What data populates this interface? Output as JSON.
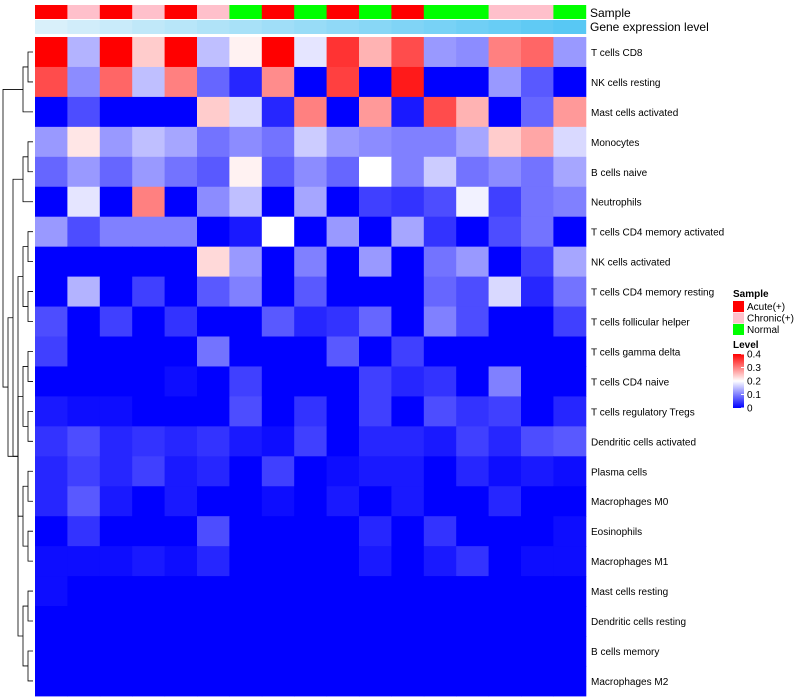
{
  "chart_data": {
    "type": "heatmap",
    "annotation_labels": {
      "sample": "Sample",
      "expression": "Gene expression level"
    },
    "sample_groups": [
      "Acute",
      "Chronic",
      "Acute",
      "Chronic",
      "Acute",
      "Chronic",
      "Normal",
      "Acute",
      "Normal",
      "Acute",
      "Normal",
      "Acute",
      "Normal",
      "Normal",
      "Chronic",
      "Chronic",
      "Normal"
    ],
    "group_colors": {
      "Acute": "#ff0000",
      "Chronic": "#ffc0cb",
      "Normal": "#00ff00"
    },
    "expression_levels": [
      0.05,
      0.08,
      0.11,
      0.14,
      0.17,
      0.2,
      0.23,
      0.26,
      0.29,
      0.32,
      0.35,
      0.38,
      0.41,
      0.44,
      0.47,
      0.5,
      0.53
    ],
    "expression_scale": {
      "low": "#e6f4fb",
      "high": "#58c8f4"
    },
    "rows": [
      "T cells CD8",
      "NK cells resting",
      "Mast cells activated",
      "Monocytes",
      "B cells naive",
      "Neutrophils",
      "T cells CD4 memory activated",
      "NK cells activated",
      "T cells CD4 memory resting",
      "T cells follicular helper",
      "T cells gamma delta",
      "T cells CD4 naive",
      "T cells regulatory  Tregs",
      "Dendritic cells activated",
      "Plasma cells",
      "Macrophages M0",
      "Eosinophils",
      "Macrophages M1",
      "Mast cells resting",
      "Dendritic cells resting",
      "B cells memory",
      "Macrophages M2"
    ],
    "values": [
      [
        0.4,
        0.14,
        0.4,
        0.24,
        0.4,
        0.15,
        0.21,
        0.4,
        0.18,
        0.36,
        0.26,
        0.34,
        0.12,
        0.11,
        0.3,
        0.32,
        0.12
      ],
      [
        0.34,
        0.11,
        0.32,
        0.15,
        0.3,
        0.08,
        0.03,
        0.29,
        0.0,
        0.35,
        0.0,
        0.38,
        0.0,
        0.0,
        0.12,
        0.07,
        0.0
      ],
      [
        0.0,
        0.06,
        0.0,
        0.0,
        0.0,
        0.24,
        0.17,
        0.03,
        0.3,
        0.0,
        0.28,
        0.02,
        0.34,
        0.26,
        0.0,
        0.08,
        0.28
      ],
      [
        0.12,
        0.22,
        0.12,
        0.15,
        0.13,
        0.09,
        0.11,
        0.09,
        0.16,
        0.12,
        0.11,
        0.1,
        0.1,
        0.13,
        0.24,
        0.27,
        0.17
      ],
      [
        0.08,
        0.12,
        0.08,
        0.12,
        0.09,
        0.07,
        0.21,
        0.07,
        0.11,
        0.08,
        0.2,
        0.1,
        0.16,
        0.09,
        0.11,
        0.09,
        0.13
      ],
      [
        0.0,
        0.18,
        0.0,
        0.3,
        0.0,
        0.11,
        0.15,
        0.0,
        0.13,
        0.0,
        0.05,
        0.04,
        0.06,
        0.19,
        0.05,
        0.09,
        0.1
      ],
      [
        0.12,
        0.06,
        0.1,
        0.1,
        0.1,
        0.0,
        0.02,
        0.2,
        0.0,
        0.12,
        0.0,
        0.13,
        0.04,
        0.0,
        0.06,
        0.09,
        0.0
      ],
      [
        0.0,
        0.0,
        0.0,
        0.0,
        0.0,
        0.23,
        0.12,
        0.0,
        0.1,
        0.0,
        0.12,
        0.0,
        0.09,
        0.12,
        0.0,
        0.05,
        0.13
      ],
      [
        0.0,
        0.14,
        0.0,
        0.05,
        0.0,
        0.07,
        0.1,
        0.0,
        0.07,
        0.0,
        0.0,
        0.0,
        0.08,
        0.06,
        0.17,
        0.03,
        0.09
      ],
      [
        0.06,
        0.0,
        0.05,
        0.0,
        0.04,
        0.0,
        0.0,
        0.07,
        0.03,
        0.04,
        0.08,
        0.0,
        0.1,
        0.06,
        0.0,
        0.0,
        0.05
      ],
      [
        0.05,
        0.0,
        0.0,
        0.0,
        0.0,
        0.09,
        0.0,
        0.0,
        0.0,
        0.07,
        0.0,
        0.05,
        0.0,
        0.0,
        0.0,
        0.0,
        0.0
      ],
      [
        0.0,
        0.0,
        0.0,
        0.0,
        0.01,
        0.0,
        0.05,
        0.0,
        0.0,
        0.0,
        0.05,
        0.03,
        0.04,
        0.0,
        0.1,
        0.0,
        0.0
      ],
      [
        0.02,
        0.01,
        0.01,
        0.0,
        0.0,
        0.0,
        0.06,
        0.0,
        0.04,
        0.0,
        0.05,
        0.0,
        0.06,
        0.04,
        0.05,
        0.0,
        0.03
      ],
      [
        0.04,
        0.06,
        0.03,
        0.04,
        0.03,
        0.04,
        0.02,
        0.01,
        0.05,
        0.0,
        0.03,
        0.03,
        0.02,
        0.05,
        0.03,
        0.06,
        0.07
      ],
      [
        0.03,
        0.05,
        0.03,
        0.05,
        0.02,
        0.03,
        0.0,
        0.05,
        0.0,
        0.01,
        0.02,
        0.02,
        0.0,
        0.03,
        0.01,
        0.02,
        0.01
      ],
      [
        0.03,
        0.07,
        0.02,
        0.0,
        0.02,
        0.0,
        0.0,
        0.01,
        0.0,
        0.02,
        0.0,
        0.02,
        0.0,
        0.0,
        0.03,
        0.0,
        0.0
      ],
      [
        0.0,
        0.04,
        0.0,
        0.0,
        0.0,
        0.06,
        0.0,
        0.0,
        0.0,
        0.0,
        0.03,
        0.0,
        0.04,
        0.0,
        0.0,
        0.0,
        0.01
      ],
      [
        0.01,
        0.01,
        0.01,
        0.02,
        0.01,
        0.03,
        0.0,
        0.0,
        0.0,
        0.0,
        0.02,
        0.0,
        0.02,
        0.04,
        0.0,
        0.01,
        0.01
      ],
      [
        0.01,
        0.0,
        0.0,
        0.0,
        0.0,
        0.0,
        0.0,
        0.0,
        0.0,
        0.0,
        0.0,
        0.0,
        0.0,
        0.0,
        0.0,
        0.0,
        0.0
      ],
      [
        0.0,
        0.0,
        0.0,
        0.0,
        0.0,
        0.0,
        0.0,
        0.0,
        0.0,
        0.0,
        0.0,
        0.0,
        0.0,
        0.0,
        0.0,
        0.0,
        0.0
      ],
      [
        0.0,
        0.0,
        0.0,
        0.0,
        0.0,
        0.0,
        0.0,
        0.0,
        0.0,
        0.0,
        0.0,
        0.0,
        0.0,
        0.0,
        0.0,
        0.0,
        0.0
      ],
      [
        0.0,
        0.0,
        0.0,
        0.0,
        0.0,
        0.0,
        0.0,
        0.0,
        0.0,
        0.0,
        0.0,
        0.0,
        0.0,
        0.0,
        0.0,
        0.0,
        0.0
      ]
    ],
    "color_scale": {
      "min": 0,
      "mid": 0.2,
      "max": 0.4,
      "low": "#0000ff",
      "midColor": "#ffffff",
      "high": "#ff0000"
    },
    "legend": {
      "sample_title": "Sample",
      "sample_entries": [
        {
          "label": "Acute(+)",
          "group": "Acute"
        },
        {
          "label": "Chronic(+)",
          "group": "Chronic"
        },
        {
          "label": "Normal",
          "group": "Normal"
        }
      ],
      "level_title": "Level",
      "level_ticks": [
        0.4,
        0.3,
        0.2,
        0.1,
        0
      ],
      "placement": "right"
    },
    "dendrogram": {
      "side": "left",
      "merges": [
        [
          0,
          1
        ],
        [
          2,
          "m0"
        ],
        [
          3,
          4
        ],
        [
          5,
          "m2"
        ],
        [
          6,
          7
        ],
        [
          8,
          9
        ],
        [
          10,
          11
        ],
        [
          12,
          13
        ],
        [
          14,
          15
        ],
        [
          16,
          17
        ],
        [
          18,
          19
        ],
        [
          20,
          21
        ],
        [
          "m4",
          "m5"
        ],
        [
          "m6",
          "m7"
        ],
        [
          "m8",
          "m9"
        ],
        [
          "m10",
          "m11"
        ],
        [
          "m13",
          "m14"
        ],
        [
          "m15",
          "m12"
        ],
        [
          "m3",
          "m17"
        ],
        [
          "m16",
          "m18"
        ],
        [
          "m1",
          "m19"
        ]
      ]
    }
  }
}
